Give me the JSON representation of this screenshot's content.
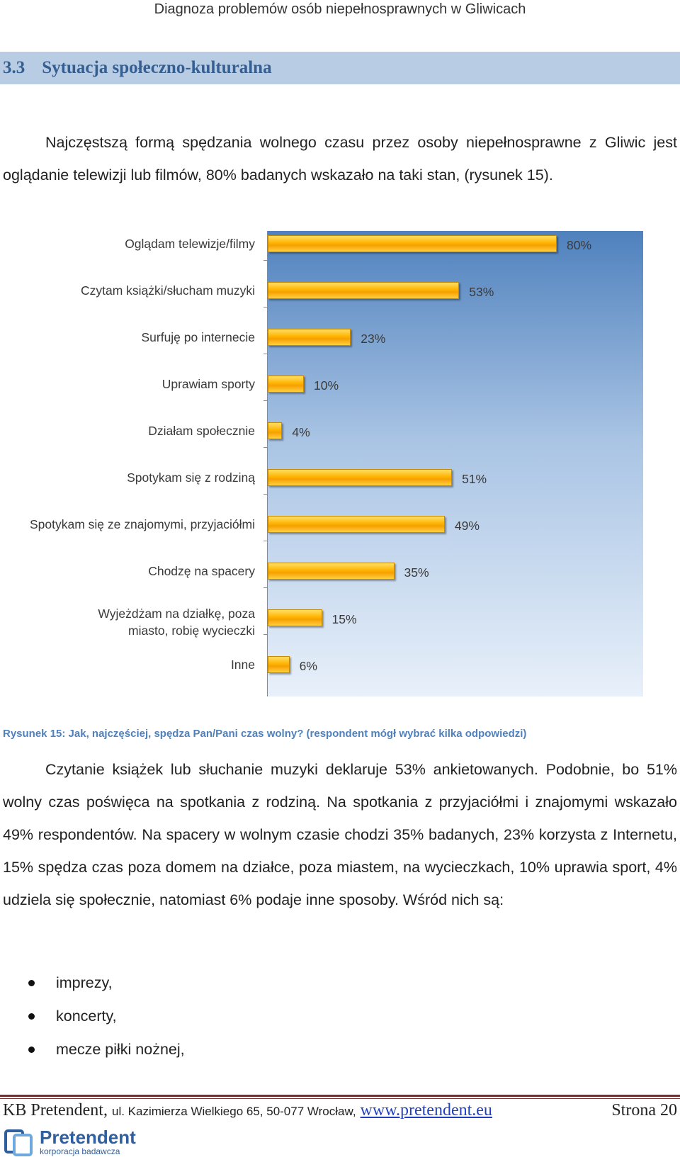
{
  "header": {
    "title": "Diagnoza problemów osób niepełnosprawnych w Gliwicach"
  },
  "section": {
    "number": "3.3",
    "title": "Sytuacja społeczno-kulturalna"
  },
  "intro": {
    "text": "Najczęstszą formą spędzania wolnego czasu przez osoby niepełnosprawne z Gliwic jest oglądanie telewizji lub filmów, 80% badanych wskazało na taki stan, (rysunek 15)."
  },
  "chart_data": {
    "type": "bar",
    "orientation": "horizontal",
    "title": "",
    "xlabel": "",
    "ylabel": "",
    "xlim": [
      0,
      100
    ],
    "categories": [
      "Oglądam telewizje/filmy",
      "Czytam książki/słucham muzyki",
      "Surfuję po internecie",
      "Uprawiam sporty",
      "Działam społecznie",
      "Spotykam się z rodziną",
      "Spotykam się ze znajomymi, przyjaciółmi",
      "Chodzę na spacery",
      "Wyjeżdżam na działkę, poza miasto, robię wycieczki",
      "Inne"
    ],
    "values": [
      80,
      53,
      23,
      10,
      4,
      51,
      49,
      35,
      15,
      6
    ],
    "value_labels": [
      "80%",
      "53%",
      "23%",
      "10%",
      "4%",
      "51%",
      "49%",
      "35%",
      "15%",
      "6%"
    ],
    "colors": {
      "bar": "#ffb300",
      "background_top": "#4f81bd",
      "background_bottom": "#e8f0fa"
    }
  },
  "caption": {
    "label": "Rysunek 15: Jak, najczęściej, spędza Pan/Pani czas wolny?",
    "note": "(respondent mógł wybrać kilka odpowiedzi)"
  },
  "body": {
    "text": "Czytanie książek lub słuchanie muzyki deklaruje 53% ankietowanych. Podobnie, bo 51% wolny czas poświęca na spotkania z rodziną. Na spotkania z przyjaciółmi i znajomymi wskazało 49% respondentów. Na spacery w wolnym czasie chodzi 35% badanych, 23% korzysta z Internetu, 15% spędza czas poza domem na działce, poza miastem, na wycieczkach, 10% uprawia sport, 4% udziela się społecznie, natomiast 6% podaje inne sposoby. Wśród nich są:"
  },
  "bullets": [
    "imprezy,",
    "koncerty,",
    "mecze piłki nożnej,"
  ],
  "footer": {
    "company": "KB Pretendent,",
    "address": "ul. Kazimierza Wielkiego 65, 50-077 Wrocław,",
    "url": "www.pretendent.eu",
    "page": "Strona 20"
  },
  "logo": {
    "name": "Pretendent",
    "tagline": "korporacja badawcza",
    "color": "#2f5f9e"
  }
}
